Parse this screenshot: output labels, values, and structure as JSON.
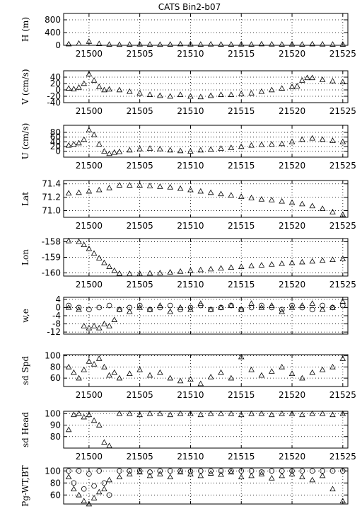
{
  "title": "CATS Bin2-b07",
  "chart_data": [
    {
      "type": "scatter",
      "ylabel": "H (m)",
      "ylim": [
        0,
        1000
      ],
      "yticks": [
        0,
        400,
        800
      ],
      "xlim": [
        21497.5,
        21525.5
      ],
      "xticks": [
        21500,
        21505,
        21510,
        21515,
        21520,
        21525
      ],
      "grid": true,
      "series": [
        {
          "marker": "triangle",
          "x": [
            21498,
            21499,
            21500,
            21501,
            21502,
            21503,
            21504,
            21505,
            21506,
            21507,
            21508,
            21509,
            21510,
            21511,
            21512,
            21513,
            21514,
            21515,
            21516,
            21517,
            21518,
            21519,
            21520,
            21521,
            21522,
            21523,
            21524,
            21525
          ],
          "y": [
            40,
            60,
            120,
            50,
            30,
            25,
            30,
            35,
            30,
            25,
            30,
            40,
            35,
            30,
            35,
            30,
            30,
            35,
            30,
            40,
            35,
            30,
            35,
            30,
            40,
            35,
            30,
            30
          ]
        }
      ]
    },
    {
      "type": "scatter",
      "ylabel": "V (cm/s)",
      "ylim": [
        -40,
        60
      ],
      "yticks": [
        -40,
        -20,
        0,
        20,
        40
      ],
      "xlim": [
        21497.5,
        21525.5
      ],
      "xticks": [
        21500,
        21505,
        21510,
        21515,
        21520,
        21525
      ],
      "grid": true,
      "series": [
        {
          "marker": "triangle",
          "x": [
            21498,
            21498.5,
            21499,
            21499.5,
            21500,
            21500.5,
            21501,
            21501.5,
            21502,
            21503,
            21504,
            21505,
            21506,
            21507,
            21508,
            21509,
            21510,
            21511,
            21512,
            21513,
            21514,
            21515,
            21516,
            21517,
            21518,
            21519,
            21520,
            21520.5,
            21521,
            21521.5,
            21522,
            21523,
            21524,
            21525
          ],
          "y": [
            5,
            3,
            8,
            20,
            50,
            30,
            10,
            0,
            2,
            0,
            -5,
            -10,
            -15,
            -18,
            -20,
            -15,
            -20,
            -22,
            -18,
            -15,
            -15,
            -12,
            -10,
            -5,
            0,
            5,
            10,
            12,
            30,
            38,
            38,
            32,
            28,
            25
          ]
        }
      ]
    },
    {
      "type": "scatter",
      "ylabel": "U (cm/s)",
      "ylim": [
        -25,
        110
      ],
      "yticks": [
        0,
        20,
        40,
        60,
        80
      ],
      "xlim": [
        21497.5,
        21525.5
      ],
      "xticks": [
        21500,
        21505,
        21510,
        21515,
        21520,
        21525
      ],
      "grid": true,
      "series": [
        {
          "marker": "triangle",
          "x": [
            21498,
            21498.5,
            21499,
            21499.5,
            21500,
            21500.5,
            21501,
            21501.5,
            21502,
            21502.5,
            21503,
            21504,
            21505,
            21506,
            21507,
            21508,
            21509,
            21510,
            21511,
            21512,
            21513,
            21514,
            21515,
            21516,
            21517,
            21518,
            21519,
            21520,
            21521,
            21522,
            21523,
            21524,
            21525
          ],
          "y": [
            25,
            30,
            35,
            50,
            90,
            70,
            30,
            0,
            -10,
            -5,
            -2,
            5,
            10,
            12,
            10,
            5,
            2,
            0,
            5,
            8,
            12,
            15,
            20,
            25,
            28,
            30,
            32,
            40,
            50,
            55,
            50,
            45,
            40
          ]
        }
      ]
    },
    {
      "type": "scatter",
      "ylabel": "Lat",
      "ylim": [
        70.9,
        71.45
      ],
      "yticks": [
        71.0,
        71.2,
        71.4
      ],
      "xlim": [
        21497.5,
        21525.5
      ],
      "xticks": [
        21500,
        21505,
        21510,
        21515,
        21520,
        21525
      ],
      "grid": true,
      "series": [
        {
          "marker": "triangle",
          "x": [
            21498,
            21499,
            21500,
            21501,
            21502,
            21503,
            21504,
            21505,
            21506,
            21507,
            21508,
            21509,
            21510,
            21511,
            21512,
            21513,
            21514,
            21515,
            21516,
            21517,
            21518,
            21519,
            21520,
            21521,
            21522,
            21523,
            21524,
            21525
          ],
          "y": [
            71.26,
            71.27,
            71.29,
            71.31,
            71.34,
            71.38,
            71.38,
            71.38,
            71.37,
            71.36,
            71.35,
            71.33,
            71.31,
            71.29,
            71.27,
            71.25,
            71.23,
            71.21,
            71.19,
            71.17,
            71.16,
            71.14,
            71.12,
            71.1,
            71.07,
            71.03,
            70.98,
            70.94
          ]
        }
      ]
    },
    {
      "type": "scatter",
      "ylabel": "Lon",
      "ylim": [
        -160.2,
        -157.8
      ],
      "yticks": [
        -160.0,
        -159.0,
        -158.0
      ],
      "xlim": [
        21497.5,
        21525.5
      ],
      "xticks": [
        21500,
        21505,
        21510,
        21515,
        21520,
        21525
      ],
      "grid": true,
      "series": [
        {
          "marker": "triangle",
          "x": [
            21498,
            21499,
            21499.5,
            21500,
            21500.5,
            21501,
            21501.5,
            21502,
            21502.5,
            21503,
            21504,
            21505,
            21506,
            21507,
            21508,
            21509,
            21510,
            21511,
            21512,
            21513,
            21514,
            21515,
            21516,
            21517,
            21518,
            21519,
            21520,
            21521,
            21522,
            21523,
            21524,
            21525
          ],
          "y": [
            -157.95,
            -158.0,
            -158.2,
            -158.45,
            -158.75,
            -159.05,
            -159.35,
            -159.6,
            -159.85,
            -160.03,
            -160.05,
            -160.05,
            -160.02,
            -160.0,
            -159.95,
            -159.9,
            -159.85,
            -159.8,
            -159.75,
            -159.7,
            -159.65,
            -159.6,
            -159.55,
            -159.5,
            -159.45,
            -159.4,
            -159.35,
            -159.3,
            -159.25,
            -159.2,
            -159.15,
            -159.1
          ]
        }
      ]
    },
    {
      "type": "scatter",
      "ylabel": "w,e",
      "ylim": [
        -13,
        5
      ],
      "yticks": [
        -12,
        -8,
        -4,
        0,
        4
      ],
      "xlim": [
        21497.5,
        21525.5
      ],
      "xticks": [
        21500,
        21505,
        21510,
        21515,
        21520,
        21525
      ],
      "grid": true,
      "series": [
        {
          "marker": "circle",
          "x": [
            21498,
            21499,
            21500,
            21501,
            21502,
            21503,
            21504,
            21505,
            21506,
            21507,
            21508,
            21509,
            21510,
            21511,
            21512,
            21513,
            21514,
            21515,
            21516,
            21517,
            21518,
            21519,
            21520,
            21521,
            21522,
            21523,
            21524,
            21525
          ],
          "y": [
            1,
            0,
            -1,
            0,
            1,
            -1,
            0,
            1,
            -1,
            0,
            1,
            -1,
            0,
            1,
            -1,
            0,
            1,
            -1,
            0,
            1,
            0,
            -1,
            1,
            0,
            -1,
            1,
            0,
            1
          ]
        },
        {
          "marker": "triangle",
          "x": [
            21498,
            21499,
            21499.5,
            21500,
            21500.5,
            21501,
            21501.5,
            21502,
            21502.5,
            21503,
            21504,
            21505,
            21506,
            21507,
            21508,
            21509,
            21510,
            21511,
            21512,
            21513,
            21514,
            21515,
            21516,
            21517,
            21518,
            21519,
            21520,
            21521,
            21522,
            21523,
            21524,
            21525
          ],
          "y": [
            0,
            -1,
            -9,
            -10,
            -9,
            -10,
            -8,
            -9,
            -6,
            -1,
            -2,
            0,
            -1,
            1,
            -2,
            0,
            -1,
            2,
            -1,
            0,
            1,
            -1,
            2,
            0,
            1,
            -2,
            0,
            1,
            2,
            -1,
            0,
            3
          ]
        }
      ]
    },
    {
      "type": "scatter",
      "ylabel": "sd Spd",
      "ylim": [
        45,
        102
      ],
      "yticks": [
        60,
        80,
        100
      ],
      "xlim": [
        21497.5,
        21525.5
      ],
      "xticks": [
        21500,
        21505,
        21510,
        21515,
        21520,
        21525
      ],
      "grid": true,
      "series": [
        {
          "marker": "triangle",
          "x": [
            21498,
            21498.5,
            21499,
            21499.5,
            21500,
            21500.5,
            21501,
            21501.5,
            21502,
            21502.5,
            21503,
            21504,
            21505,
            21506,
            21507,
            21508,
            21509,
            21510,
            21511,
            21512,
            21513,
            21514,
            21515,
            21516,
            21517,
            21518,
            21519,
            21520,
            21521,
            21522,
            21523,
            21524,
            21525
          ],
          "y": [
            80,
            70,
            60,
            75,
            90,
            85,
            95,
            80,
            65,
            70,
            60,
            68,
            75,
            65,
            70,
            60,
            55,
            58,
            50,
            62,
            70,
            60,
            98,
            75,
            65,
            72,
            80,
            68,
            60,
            70,
            75,
            80,
            95
          ]
        }
      ]
    },
    {
      "type": "scatter",
      "ylabel": "sd Head",
      "ylim": [
        70,
        102
      ],
      "yticks": [
        80,
        90,
        100
      ],
      "xlim": [
        21497.5,
        21525.5
      ],
      "xticks": [
        21500,
        21505,
        21510,
        21515,
        21520,
        21525
      ],
      "grid": true,
      "series": [
        {
          "marker": "triangle",
          "x": [
            21498,
            21498.5,
            21499,
            21499.5,
            21500,
            21500.5,
            21501,
            21501.5,
            21502,
            21503,
            21504,
            21505,
            21506,
            21507,
            21508,
            21509,
            21510,
            21511,
            21512,
            21513,
            21514,
            21515,
            21516,
            21517,
            21518,
            21519,
            21520,
            21521,
            21522,
            21523,
            21524,
            21525
          ],
          "y": [
            86,
            99,
            100,
            97,
            99,
            94,
            90,
            75,
            72,
            100,
            100,
            99,
            100,
            100,
            99,
            100,
            100,
            99,
            100,
            100,
            100,
            99,
            100,
            100,
            99,
            100,
            100,
            99,
            100,
            100,
            99,
            100
          ]
        }
      ]
    },
    {
      "type": "scatter",
      "ylabel": "Pg-WT,BT",
      "ylim": [
        45,
        105
      ],
      "yticks": [
        60,
        80,
        100
      ],
      "xlim": [
        21497.5,
        21525.5
      ],
      "xticks": [
        21500,
        21505,
        21510,
        21515,
        21520,
        21525
      ],
      "grid": true,
      "series": [
        {
          "marker": "circle",
          "x": [
            21498,
            21498.5,
            21499,
            21499.5,
            21500,
            21500.5,
            21501,
            21501.5,
            21502,
            21503,
            21504,
            21505,
            21506,
            21507,
            21508,
            21509,
            21510,
            21511,
            21512,
            21513,
            21514,
            21515,
            21516,
            21517,
            21518,
            21519,
            21520,
            21521,
            21522,
            21523,
            21524,
            21525
          ],
          "y": [
            100,
            80,
            100,
            70,
            95,
            75,
            100,
            80,
            60,
            100,
            100,
            100,
            98,
            100,
            100,
            100,
            99,
            100,
            100,
            100,
            100,
            100,
            100,
            98,
            100,
            100,
            100,
            100,
            100,
            100,
            100,
            100
          ]
        },
        {
          "marker": "triangle",
          "x": [
            21498,
            21498.5,
            21499,
            21499.5,
            21500,
            21500.5,
            21501,
            21501.5,
            21502,
            21503,
            21504,
            21505,
            21506,
            21507,
            21508,
            21509,
            21510,
            21511,
            21512,
            21513,
            21514,
            21515,
            21516,
            21517,
            21518,
            21519,
            21520,
            21521,
            21522,
            21523,
            21524,
            21525
          ],
          "y": [
            90,
            70,
            60,
            50,
            45,
            55,
            65,
            70,
            85,
            90,
            95,
            98,
            92,
            95,
            90,
            98,
            95,
            92,
            96,
            94,
            98,
            90,
            92,
            95,
            88,
            92,
            95,
            90,
            85,
            92,
            70,
            50
          ]
        }
      ]
    }
  ]
}
